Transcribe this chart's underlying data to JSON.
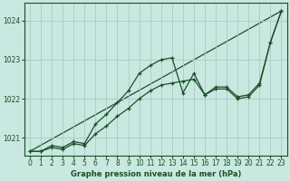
{
  "title": "Graphe pression niveau de la mer (hPa)",
  "background_color": "#c8e8e0",
  "grid_color": "#a8ccc4",
  "line_color": "#1a5028",
  "xlim": [
    -0.5,
    23.5
  ],
  "ylim": [
    1020.55,
    1024.45
  ],
  "yticks": [
    1021,
    1022,
    1023,
    1024
  ],
  "xticks": [
    0,
    1,
    2,
    3,
    4,
    5,
    6,
    7,
    8,
    9,
    10,
    11,
    12,
    13,
    14,
    15,
    16,
    17,
    18,
    19,
    20,
    21,
    22,
    23
  ],
  "line1_x": [
    0,
    1,
    2,
    3,
    4,
    5,
    6,
    7,
    8,
    9,
    10,
    11,
    12,
    13,
    14,
    15,
    16,
    17,
    18,
    19,
    20,
    21,
    22,
    23
  ],
  "line1_y": [
    1020.65,
    1020.65,
    1020.8,
    1020.75,
    1020.9,
    1020.85,
    1021.35,
    1021.6,
    1021.9,
    1022.2,
    1022.65,
    1022.85,
    1023.0,
    1023.05,
    1022.15,
    1022.65,
    1022.1,
    1022.25,
    1022.25,
    1022.0,
    1022.05,
    1022.35,
    1023.45,
    1024.25
  ],
  "line2_x": [
    0,
    1,
    2,
    3,
    4,
    5,
    6,
    7,
    8,
    9,
    10,
    11,
    12,
    13,
    14,
    15,
    16,
    17,
    18,
    19,
    20,
    21,
    22,
    23
  ],
  "line2_y": [
    1020.65,
    1020.65,
    1020.75,
    1020.7,
    1020.85,
    1020.8,
    1021.1,
    1021.3,
    1021.55,
    1021.75,
    1022.0,
    1022.2,
    1022.35,
    1022.4,
    1022.45,
    1022.5,
    1022.1,
    1022.3,
    1022.3,
    1022.05,
    1022.1,
    1022.4,
    1023.45,
    1024.25
  ],
  "line3_x": [
    0,
    23
  ],
  "line3_y": [
    1020.65,
    1024.25
  ]
}
